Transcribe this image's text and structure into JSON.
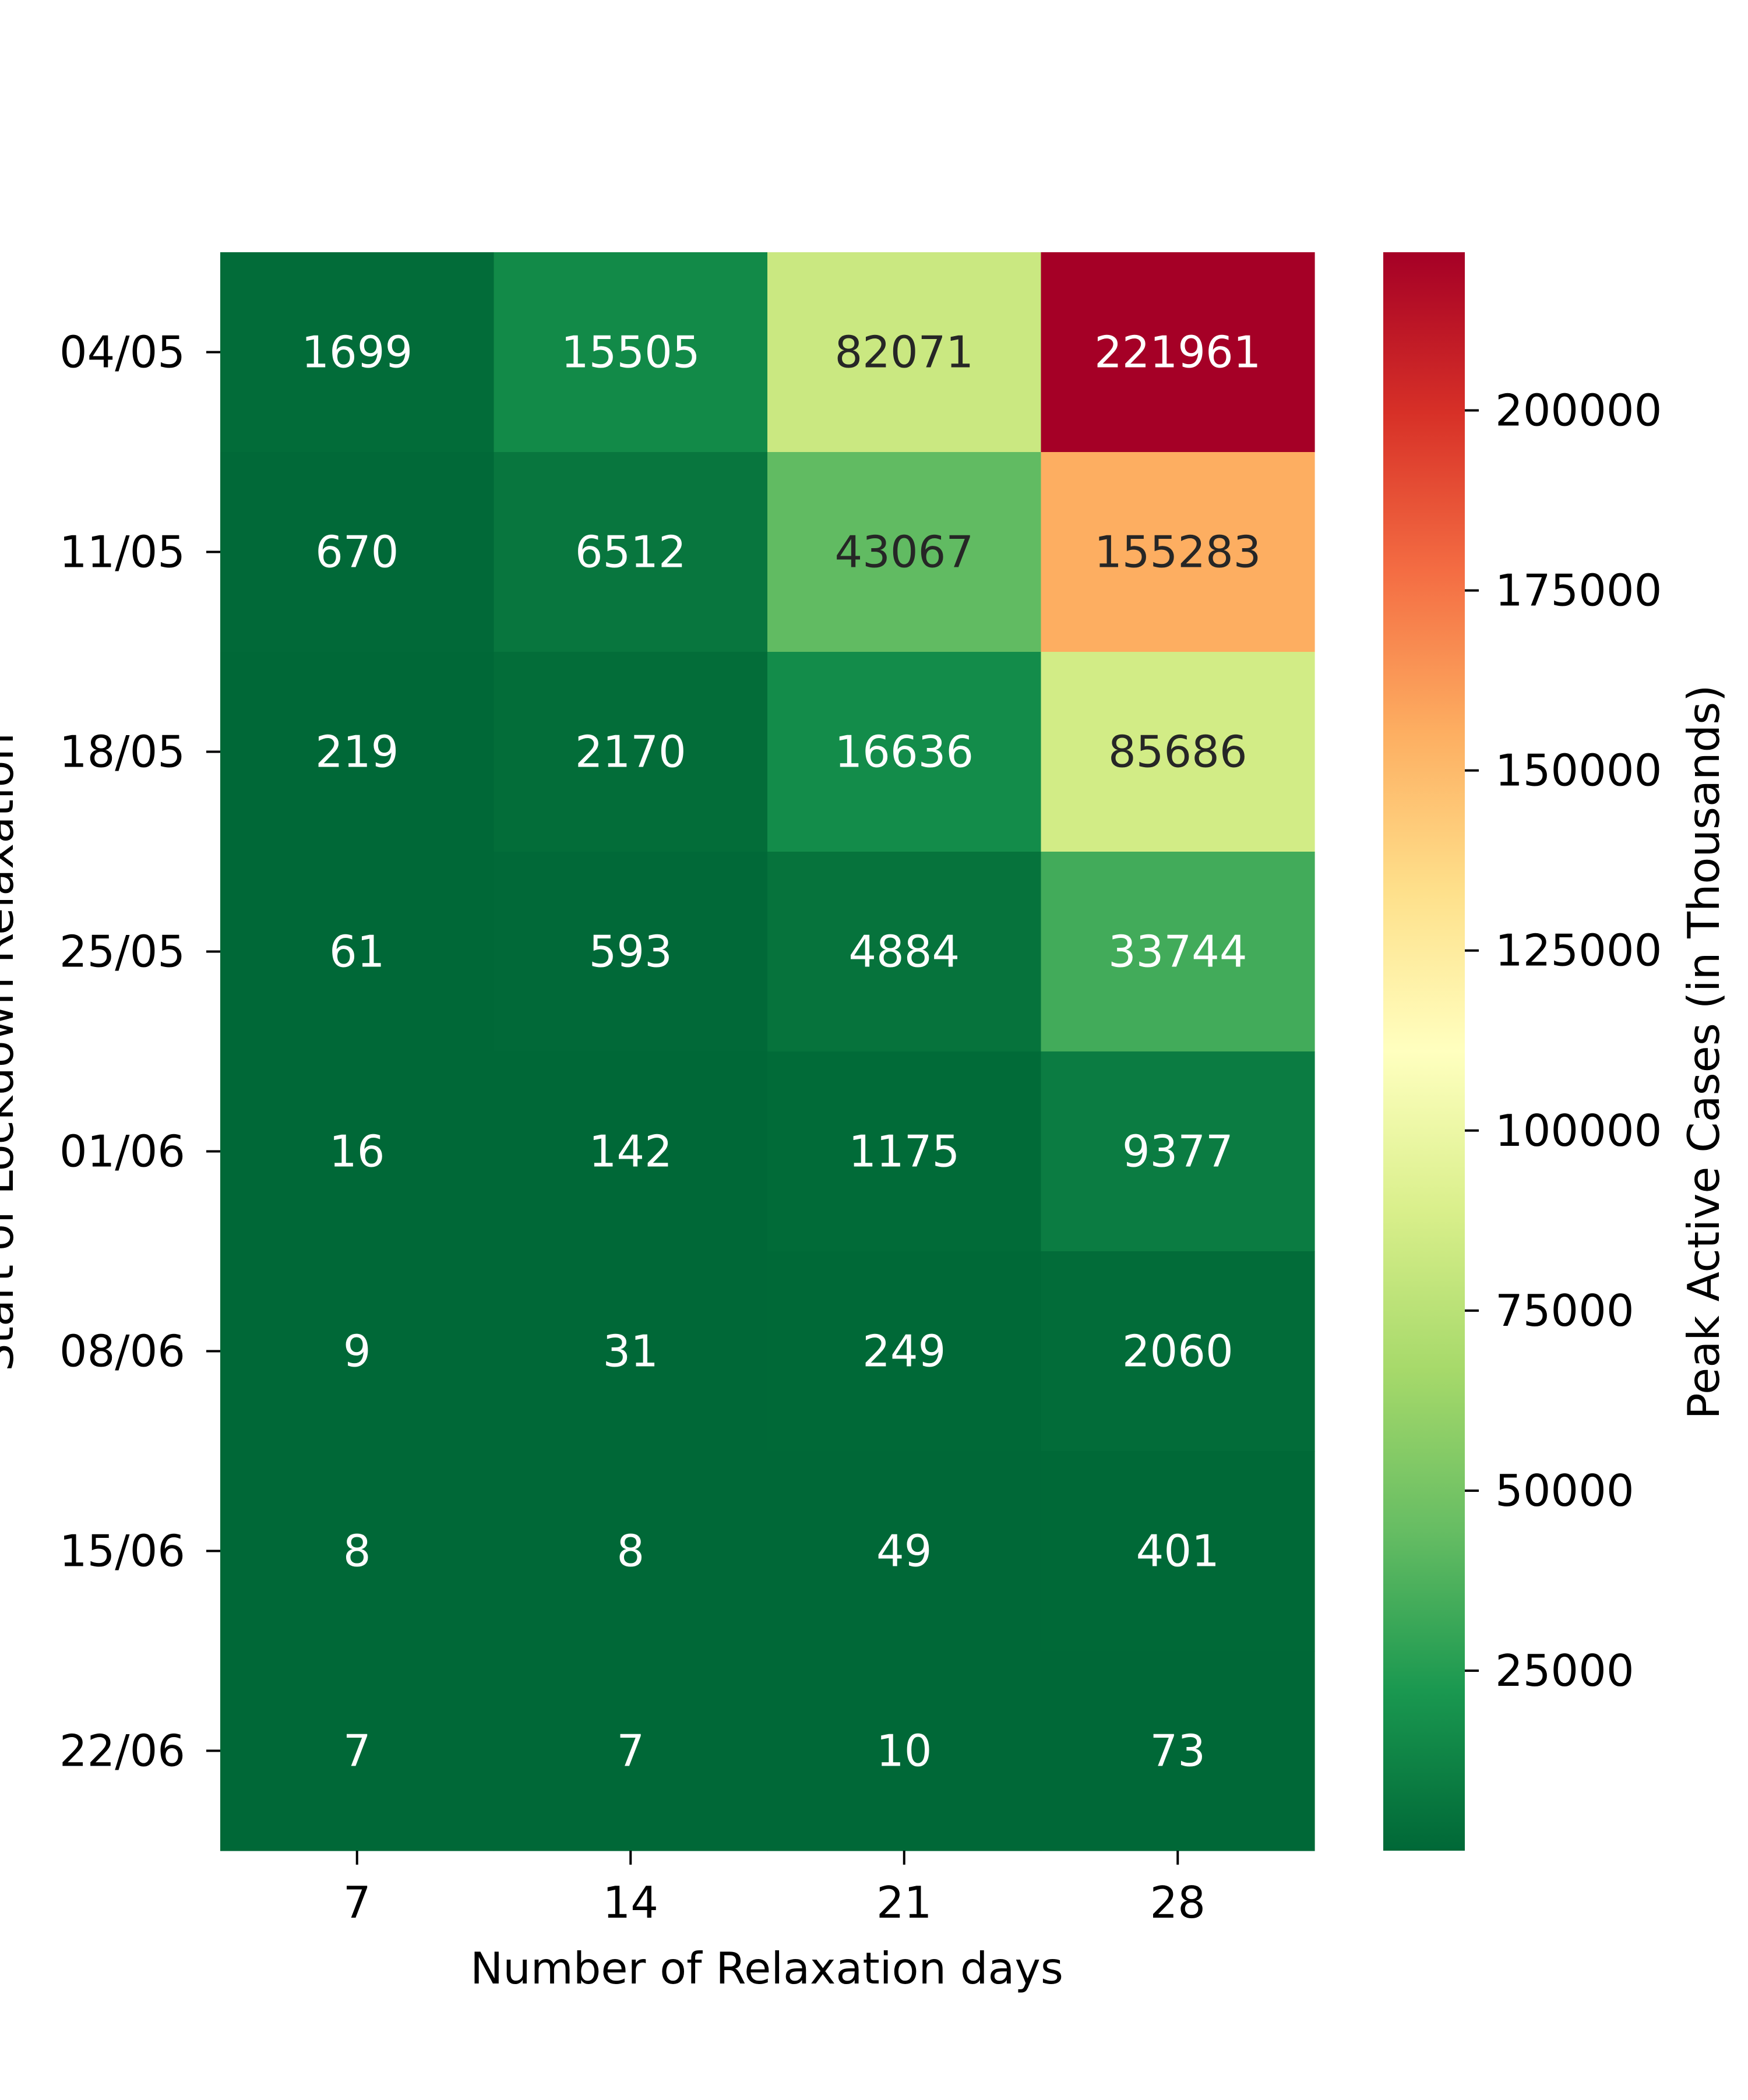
{
  "chart_data": {
    "type": "heatmap",
    "xlabel": "Number of Relaxation days",
    "ylabel": "Start of Lockdown Relaxation",
    "x_categories": [
      "7",
      "14",
      "21",
      "28"
    ],
    "y_categories": [
      "04/05",
      "11/05",
      "18/05",
      "25/05",
      "01/06",
      "08/06",
      "15/06",
      "22/06"
    ],
    "values": [
      [
        1699,
        15505,
        82071,
        221961
      ],
      [
        670,
        6512,
        43067,
        155283
      ],
      [
        219,
        2170,
        16636,
        85686
      ],
      [
        61,
        593,
        4884,
        33744
      ],
      [
        16,
        142,
        1175,
        9377
      ],
      [
        9,
        31,
        249,
        2060
      ],
      [
        8,
        8,
        49,
        401
      ],
      [
        7,
        7,
        10,
        73
      ]
    ],
    "colorbar": {
      "label": "Peak Active Cases (in Thousands)",
      "colormap": "RdYlGn_r",
      "vmin": 7,
      "vmax": 221961,
      "ticks": [
        25000,
        50000,
        75000,
        100000,
        125000,
        150000,
        175000,
        200000
      ]
    }
  }
}
